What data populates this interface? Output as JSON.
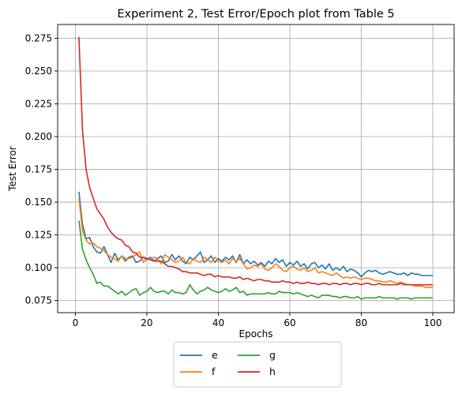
{
  "chart_data": {
    "type": "line",
    "title": "Experiment 2, Test Error/Epoch plot from Table 5",
    "xlabel": "Epochs",
    "ylabel": "Test Error",
    "xlim": [
      -4.95,
      105.95
    ],
    "ylim": [
      0.0657,
      0.2855
    ],
    "xticks": [
      0,
      20,
      40,
      60,
      80,
      100
    ],
    "xtick_labels": [
      "0",
      "20",
      "40",
      "60",
      "80",
      "100"
    ],
    "yticks": [
      0.075,
      0.1,
      0.125,
      0.15,
      0.175,
      0.2,
      0.225,
      0.25,
      0.275
    ],
    "ytick_labels": [
      "0.075",
      "0.100",
      "0.125",
      "0.150",
      "0.175",
      "0.200",
      "0.225",
      "0.250",
      "0.275"
    ],
    "grid": true,
    "legend": {
      "placement": "below-center",
      "columns": 3
    },
    "series": [
      {
        "name": "e",
        "color": "#1f77b4",
        "x": [
          1,
          2,
          3,
          4,
          5,
          6,
          7,
          8,
          9,
          10,
          11,
          12,
          13,
          14,
          15,
          16,
          17,
          18,
          19,
          20,
          21,
          22,
          23,
          24,
          25,
          26,
          27,
          28,
          29,
          30,
          31,
          32,
          33,
          34,
          35,
          36,
          37,
          38,
          39,
          40,
          41,
          42,
          43,
          44,
          45,
          46,
          47,
          48,
          49,
          50,
          51,
          52,
          53,
          54,
          55,
          56,
          57,
          58,
          59,
          60,
          61,
          62,
          63,
          64,
          65,
          66,
          67,
          68,
          69,
          70,
          71,
          72,
          73,
          74,
          75,
          76,
          77,
          78,
          79,
          80,
          81,
          82,
          83,
          84,
          85,
          86,
          87,
          88,
          89,
          90,
          91,
          92,
          93,
          94,
          95,
          96,
          97,
          98,
          99,
          100
        ],
        "values": [
          0.158,
          0.133,
          0.122,
          0.123,
          0.116,
          0.112,
          0.111,
          0.116,
          0.11,
          0.104,
          0.111,
          0.106,
          0.109,
          0.105,
          0.108,
          0.109,
          0.104,
          0.105,
          0.108,
          0.106,
          0.108,
          0.105,
          0.107,
          0.109,
          0.104,
          0.105,
          0.11,
          0.106,
          0.109,
          0.105,
          0.103,
          0.108,
          0.106,
          0.109,
          0.112,
          0.104,
          0.106,
          0.109,
          0.104,
          0.107,
          0.105,
          0.108,
          0.106,
          0.109,
          0.104,
          0.11,
          0.103,
          0.106,
          0.103,
          0.105,
          0.102,
          0.104,
          0.101,
          0.105,
          0.103,
          0.107,
          0.104,
          0.106,
          0.101,
          0.104,
          0.102,
          0.105,
          0.101,
          0.103,
          0.099,
          0.103,
          0.104,
          0.1,
          0.102,
          0.099,
          0.103,
          0.098,
          0.1,
          0.098,
          0.101,
          0.097,
          0.099,
          0.098,
          0.096,
          0.093,
          0.096,
          0.098,
          0.097,
          0.098,
          0.096,
          0.095,
          0.096,
          0.097,
          0.096,
          0.095,
          0.095,
          0.096,
          0.094,
          0.096,
          0.095,
          0.095,
          0.094,
          0.094,
          0.094,
          0.094
        ]
      },
      {
        "name": "f",
        "color": "#ff7f0e",
        "x": [
          1,
          2,
          3,
          4,
          5,
          6,
          7,
          8,
          9,
          10,
          11,
          12,
          13,
          14,
          15,
          16,
          17,
          18,
          19,
          20,
          21,
          22,
          23,
          24,
          25,
          26,
          27,
          28,
          29,
          30,
          31,
          32,
          33,
          34,
          35,
          36,
          37,
          38,
          39,
          40,
          41,
          42,
          43,
          44,
          45,
          46,
          47,
          48,
          49,
          50,
          51,
          52,
          53,
          54,
          55,
          56,
          57,
          58,
          59,
          60,
          61,
          62,
          63,
          64,
          65,
          66,
          67,
          68,
          69,
          70,
          71,
          72,
          73,
          74,
          75,
          76,
          77,
          78,
          79,
          80,
          81,
          82,
          83,
          84,
          85,
          86,
          87,
          88,
          89,
          90,
          91,
          92,
          93,
          94,
          95,
          96,
          97,
          98,
          99,
          100
        ],
        "values": [
          0.153,
          0.128,
          0.121,
          0.118,
          0.119,
          0.116,
          0.115,
          0.113,
          0.11,
          0.108,
          0.107,
          0.105,
          0.109,
          0.107,
          0.107,
          0.108,
          0.11,
          0.112,
          0.104,
          0.107,
          0.106,
          0.108,
          0.107,
          0.103,
          0.11,
          0.108,
          0.106,
          0.104,
          0.105,
          0.108,
          0.104,
          0.103,
          0.107,
          0.105,
          0.104,
          0.108,
          0.106,
          0.104,
          0.108,
          0.105,
          0.104,
          0.106,
          0.103,
          0.107,
          0.105,
          0.107,
          0.103,
          0.099,
          0.1,
          0.102,
          0.101,
          0.103,
          0.099,
          0.098,
          0.1,
          0.103,
          0.101,
          0.098,
          0.097,
          0.1,
          0.101,
          0.099,
          0.098,
          0.1,
          0.097,
          0.098,
          0.1,
          0.096,
          0.097,
          0.096,
          0.095,
          0.094,
          0.096,
          0.094,
          0.092,
          0.093,
          0.092,
          0.093,
          0.092,
          0.091,
          0.092,
          0.092,
          0.091,
          0.09,
          0.09,
          0.089,
          0.089,
          0.09,
          0.089,
          0.088,
          0.089,
          0.088,
          0.087,
          0.087,
          0.086,
          0.086,
          0.086,
          0.085,
          0.085,
          0.085
        ]
      },
      {
        "name": "g",
        "color": "#2ca02c",
        "x": [
          1,
          2,
          3,
          4,
          5,
          6,
          7,
          8,
          9,
          10,
          11,
          12,
          13,
          14,
          15,
          16,
          17,
          18,
          19,
          20,
          21,
          22,
          23,
          24,
          25,
          26,
          27,
          28,
          29,
          30,
          31,
          32,
          33,
          34,
          35,
          36,
          37,
          38,
          39,
          40,
          41,
          42,
          43,
          44,
          45,
          46,
          47,
          48,
          49,
          50,
          51,
          52,
          53,
          54,
          55,
          56,
          57,
          58,
          59,
          60,
          61,
          62,
          63,
          64,
          65,
          66,
          67,
          68,
          69,
          70,
          71,
          72,
          73,
          74,
          75,
          76,
          77,
          78,
          79,
          80,
          81,
          82,
          83,
          84,
          85,
          86,
          87,
          88,
          89,
          90,
          91,
          92,
          93,
          94,
          95,
          96,
          97,
          98,
          99,
          100
        ],
        "values": [
          0.136,
          0.114,
          0.106,
          0.1,
          0.095,
          0.088,
          0.089,
          0.086,
          0.086,
          0.084,
          0.082,
          0.08,
          0.082,
          0.079,
          0.081,
          0.083,
          0.084,
          0.079,
          0.081,
          0.082,
          0.085,
          0.082,
          0.081,
          0.082,
          0.082,
          0.08,
          0.083,
          0.081,
          0.081,
          0.08,
          0.081,
          0.087,
          0.083,
          0.08,
          0.082,
          0.083,
          0.085,
          0.083,
          0.082,
          0.081,
          0.082,
          0.084,
          0.082,
          0.083,
          0.085,
          0.081,
          0.082,
          0.079,
          0.08,
          0.08,
          0.08,
          0.08,
          0.08,
          0.081,
          0.08,
          0.08,
          0.082,
          0.081,
          0.081,
          0.081,
          0.08,
          0.081,
          0.08,
          0.079,
          0.078,
          0.079,
          0.078,
          0.077,
          0.079,
          0.079,
          0.079,
          0.078,
          0.078,
          0.077,
          0.078,
          0.078,
          0.077,
          0.077,
          0.078,
          0.076,
          0.077,
          0.077,
          0.077,
          0.077,
          0.078,
          0.077,
          0.077,
          0.077,
          0.077,
          0.076,
          0.077,
          0.077,
          0.077,
          0.076,
          0.077,
          0.077,
          0.077,
          0.077,
          0.077,
          0.077
        ]
      },
      {
        "name": "h",
        "color": "#d62728",
        "x": [
          1,
          2,
          3,
          4,
          5,
          6,
          7,
          8,
          9,
          10,
          11,
          12,
          13,
          14,
          15,
          16,
          17,
          18,
          19,
          20,
          21,
          22,
          23,
          24,
          25,
          26,
          27,
          28,
          29,
          30,
          31,
          32,
          33,
          34,
          35,
          36,
          37,
          38,
          39,
          40,
          41,
          42,
          43,
          44,
          45,
          46,
          47,
          48,
          49,
          50,
          51,
          52,
          53,
          54,
          55,
          56,
          57,
          58,
          59,
          60,
          61,
          62,
          63,
          64,
          65,
          66,
          67,
          68,
          69,
          70,
          71,
          72,
          73,
          74,
          75,
          76,
          77,
          78,
          79,
          80,
          81,
          82,
          83,
          84,
          85,
          86,
          87,
          88,
          89,
          90,
          91,
          92,
          93,
          94,
          95,
          96,
          97,
          98,
          99,
          100
        ],
        "values": [
          0.276,
          0.205,
          0.175,
          0.161,
          0.153,
          0.145,
          0.141,
          0.137,
          0.131,
          0.127,
          0.124,
          0.122,
          0.121,
          0.117,
          0.116,
          0.112,
          0.111,
          0.108,
          0.108,
          0.107,
          0.106,
          0.105,
          0.105,
          0.105,
          0.103,
          0.101,
          0.101,
          0.1,
          0.099,
          0.097,
          0.097,
          0.096,
          0.096,
          0.096,
          0.095,
          0.094,
          0.095,
          0.095,
          0.093,
          0.094,
          0.093,
          0.093,
          0.093,
          0.092,
          0.092,
          0.093,
          0.091,
          0.092,
          0.091,
          0.09,
          0.091,
          0.091,
          0.09,
          0.09,
          0.089,
          0.089,
          0.089,
          0.09,
          0.089,
          0.089,
          0.088,
          0.089,
          0.088,
          0.088,
          0.089,
          0.088,
          0.088,
          0.087,
          0.088,
          0.088,
          0.087,
          0.088,
          0.088,
          0.087,
          0.088,
          0.088,
          0.087,
          0.088,
          0.088,
          0.087,
          0.088,
          0.088,
          0.087,
          0.087,
          0.088,
          0.087,
          0.087,
          0.087,
          0.087,
          0.087,
          0.088,
          0.087,
          0.087,
          0.087,
          0.087,
          0.087,
          0.087,
          0.087,
          0.087,
          0.087
        ]
      }
    ]
  }
}
